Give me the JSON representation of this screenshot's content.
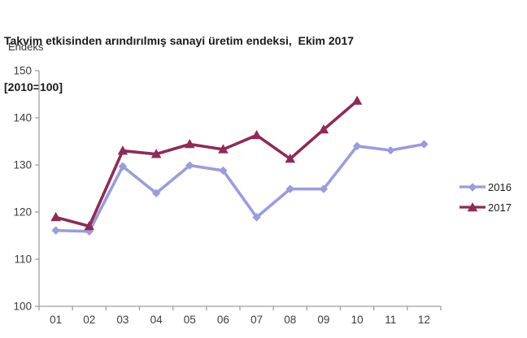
{
  "chart_data": {
    "type": "line",
    "title": "Takvim etkisinden arındırılmış sanayi üretim endeksi,  Ekim 2017",
    "subtitle": "[2010=100]",
    "ylabel": "Endeks",
    "xlabel": "",
    "categories": [
      "01",
      "02",
      "03",
      "04",
      "05",
      "06",
      "07",
      "08",
      "09",
      "10",
      "11",
      "12"
    ],
    "series": [
      {
        "name": "2016",
        "color": "#9b9be0",
        "marker": "diamond",
        "values": [
          116.1,
          115.9,
          129.7,
          124.0,
          129.9,
          128.8,
          118.9,
          124.9,
          124.9,
          134.0,
          133.1,
          134.4
        ]
      },
      {
        "name": "2017",
        "color": "#8e2b56",
        "marker": "triangle",
        "values": [
          118.9,
          117.0,
          133.0,
          132.3,
          134.4,
          133.3,
          136.3,
          131.3,
          137.5,
          143.6
        ]
      }
    ],
    "ylim": [
      100,
      150
    ],
    "ytick_step": 10,
    "grid": false,
    "legend_position": "right",
    "axis_color": "#9e9e9e",
    "tick_label_color": "#3c3c3c"
  }
}
